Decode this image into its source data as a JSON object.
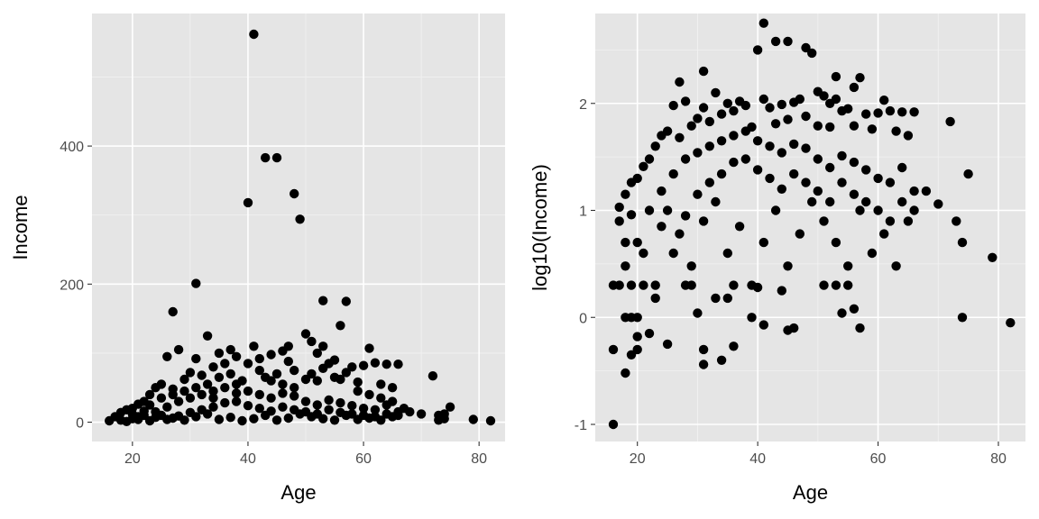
{
  "chart_data": [
    {
      "type": "scatter",
      "xlabel": "Age",
      "ylabel": "Income",
      "xlim": [
        13,
        84.5
      ],
      "ylim": [
        -28,
        592
      ],
      "x_ticks": [
        20,
        40,
        60,
        80
      ],
      "x_tick_labels": [
        "20",
        "40",
        "60",
        "80"
      ],
      "y_ticks": [
        0,
        200,
        400
      ],
      "y_tick_labels": [
        "0",
        "200",
        "400"
      ],
      "grid": true,
      "point_color": "#000000",
      "background_color": "#e5e5e5",
      "points": [
        [
          41,
          562
        ],
        [
          43,
          383
        ],
        [
          45,
          383
        ],
        [
          40,
          318
        ],
        [
          48,
          331
        ],
        [
          49,
          294
        ],
        [
          31,
          201
        ],
        [
          27,
          160
        ],
        [
          53,
          176
        ],
        [
          57,
          175
        ],
        [
          56,
          140
        ],
        [
          50,
          128
        ],
        [
          51,
          117
        ],
        [
          53,
          110
        ],
        [
          41,
          110
        ],
        [
          61,
          107
        ],
        [
          33,
          125
        ],
        [
          28,
          105
        ],
        [
          26,
          95
        ],
        [
          31,
          92
        ],
        [
          35,
          100
        ],
        [
          37,
          105
        ],
        [
          38,
          95
        ],
        [
          42,
          92
        ],
        [
          44,
          98
        ],
        [
          46,
          103
        ],
        [
          47,
          110
        ],
        [
          52,
          100
        ],
        [
          54,
          85
        ],
        [
          55,
          90
        ],
        [
          58,
          80
        ],
        [
          60,
          82
        ],
        [
          62,
          86
        ],
        [
          64,
          84
        ],
        [
          66,
          84
        ],
        [
          72,
          67
        ],
        [
          36,
          85
        ],
        [
          34,
          80
        ],
        [
          30,
          72
        ],
        [
          32,
          68
        ],
        [
          29,
          62
        ],
        [
          25,
          55
        ],
        [
          24,
          50
        ],
        [
          27,
          48
        ],
        [
          23,
          40
        ],
        [
          39,
          60
        ],
        [
          43,
          65
        ],
        [
          45,
          70
        ],
        [
          48,
          75
        ],
        [
          50,
          62
        ],
        [
          52,
          60
        ],
        [
          56,
          62
        ],
        [
          59,
          58
        ],
        [
          63,
          55
        ],
        [
          65,
          50
        ],
        [
          22,
          30
        ],
        [
          21,
          26
        ],
        [
          20,
          20
        ],
        [
          19,
          18
        ],
        [
          18,
          14
        ],
        [
          17,
          8
        ],
        [
          16,
          2
        ],
        [
          20,
          5
        ],
        [
          22,
          10
        ],
        [
          24,
          15
        ],
        [
          26,
          22
        ],
        [
          28,
          30
        ],
        [
          30,
          35
        ],
        [
          32,
          40
        ],
        [
          34,
          45
        ],
        [
          36,
          50
        ],
        [
          38,
          55
        ],
        [
          40,
          45
        ],
        [
          42,
          40
        ],
        [
          44,
          35
        ],
        [
          46,
          42
        ],
        [
          48,
          38
        ],
        [
          50,
          30
        ],
        [
          52,
          25
        ],
        [
          54,
          32
        ],
        [
          56,
          28
        ],
        [
          58,
          24
        ],
        [
          60,
          20
        ],
        [
          62,
          18
        ],
        [
          64,
          25
        ],
        [
          66,
          15
        ],
        [
          68,
          15
        ],
        [
          70,
          12
        ],
        [
          73,
          10
        ],
        [
          74,
          5
        ],
        [
          75,
          22
        ],
        [
          79,
          4
        ],
        [
          82,
          2
        ],
        [
          25,
          10
        ],
        [
          27,
          6
        ],
        [
          29,
          3
        ],
        [
          31,
          8
        ],
        [
          33,
          12
        ],
        [
          35,
          4
        ],
        [
          37,
          7
        ],
        [
          39,
          2
        ],
        [
          41,
          5
        ],
        [
          43,
          10
        ],
        [
          45,
          3
        ],
        [
          47,
          6
        ],
        [
          49,
          12
        ],
        [
          51,
          8
        ],
        [
          53,
          5
        ],
        [
          55,
          3
        ],
        [
          57,
          10
        ],
        [
          59,
          4
        ],
        [
          61,
          6
        ],
        [
          63,
          3
        ],
        [
          65,
          8
        ],
        [
          18,
          3
        ],
        [
          19,
          1
        ],
        [
          21,
          4
        ],
        [
          23,
          2
        ],
        [
          24,
          7
        ],
        [
          26,
          4
        ],
        [
          28,
          9
        ],
        [
          30,
          14
        ],
        [
          32,
          18
        ],
        [
          34,
          22
        ],
        [
          36,
          28
        ],
        [
          38,
          30
        ],
        [
          40,
          24
        ],
        [
          42,
          20
        ],
        [
          44,
          16
        ],
        [
          46,
          22
        ],
        [
          48,
          18
        ],
        [
          50,
          15
        ],
        [
          52,
          12
        ],
        [
          54,
          18
        ],
        [
          56,
          14
        ],
        [
          58,
          12
        ],
        [
          60,
          10
        ],
        [
          62,
          8
        ],
        [
          64,
          12
        ],
        [
          66,
          10
        ],
        [
          40,
          85
        ],
        [
          42,
          75
        ],
        [
          44,
          60
        ],
        [
          46,
          55
        ],
        [
          48,
          50
        ],
        [
          35,
          65
        ],
        [
          37,
          70
        ],
        [
          33,
          55
        ],
        [
          31,
          50
        ],
        [
          29,
          45
        ],
        [
          27,
          40
        ],
        [
          25,
          35
        ],
        [
          23,
          25
        ],
        [
          47,
          88
        ],
        [
          51,
          70
        ],
        [
          53,
          78
        ],
        [
          55,
          65
        ],
        [
          57,
          72
        ],
        [
          59,
          45
        ],
        [
          61,
          40
        ],
        [
          63,
          35
        ],
        [
          65,
          30
        ],
        [
          67,
          20
        ],
        [
          74,
          12
        ],
        [
          73,
          3
        ],
        [
          20,
          12
        ],
        [
          21,
          8
        ],
        [
          22,
          16
        ],
        [
          34,
          35
        ],
        [
          38,
          42
        ]
      ]
    },
    {
      "type": "scatter",
      "xlabel": "Age",
      "ylabel": "log10(Income)",
      "xlim": [
        13,
        84.5
      ],
      "ylim": [
        -1.16,
        2.84
      ],
      "x_ticks": [
        20,
        40,
        60,
        80
      ],
      "x_tick_labels": [
        "20",
        "40",
        "60",
        "80"
      ],
      "y_ticks": [
        -1,
        0,
        1,
        2
      ],
      "y_tick_labels": [
        "-1",
        "0",
        "1",
        "2"
      ],
      "grid": true,
      "point_color": "#000000",
      "background_color": "#e5e5e5",
      "points": [
        [
          41,
          2.75
        ],
        [
          43,
          2.58
        ],
        [
          45,
          2.58
        ],
        [
          40,
          2.5
        ],
        [
          48,
          2.52
        ],
        [
          49,
          2.47
        ],
        [
          31,
          2.3
        ],
        [
          27,
          2.2
        ],
        [
          53,
          2.25
        ],
        [
          57,
          2.24
        ],
        [
          56,
          2.15
        ],
        [
          50,
          2.11
        ],
        [
          51,
          2.07
        ],
        [
          53,
          2.04
        ],
        [
          41,
          2.04
        ],
        [
          61,
          2.03
        ],
        [
          33,
          2.1
        ],
        [
          28,
          2.02
        ],
        [
          26,
          1.98
        ],
        [
          31,
          1.96
        ],
        [
          35,
          2.0
        ],
        [
          37,
          2.02
        ],
        [
          38,
          1.98
        ],
        [
          42,
          1.96
        ],
        [
          44,
          1.99
        ],
        [
          46,
          2.01
        ],
        [
          47,
          2.04
        ],
        [
          52,
          2.0
        ],
        [
          54,
          1.93
        ],
        [
          55,
          1.95
        ],
        [
          58,
          1.9
        ],
        [
          60,
          1.91
        ],
        [
          62,
          1.93
        ],
        [
          64,
          1.92
        ],
        [
          66,
          1.92
        ],
        [
          72,
          1.83
        ],
        [
          36,
          1.93
        ],
        [
          34,
          1.9
        ],
        [
          30,
          1.86
        ],
        [
          32,
          1.83
        ],
        [
          29,
          1.79
        ],
        [
          25,
          1.74
        ],
        [
          24,
          1.7
        ],
        [
          27,
          1.68
        ],
        [
          23,
          1.6
        ],
        [
          39,
          1.78
        ],
        [
          43,
          1.81
        ],
        [
          45,
          1.85
        ],
        [
          48,
          1.88
        ],
        [
          50,
          1.79
        ],
        [
          52,
          1.78
        ],
        [
          56,
          1.79
        ],
        [
          59,
          1.76
        ],
        [
          63,
          1.74
        ],
        [
          65,
          1.7
        ],
        [
          22,
          1.48
        ],
        [
          21,
          1.41
        ],
        [
          20,
          1.3
        ],
        [
          19,
          1.26
        ],
        [
          18,
          1.15
        ],
        [
          17,
          0.9
        ],
        [
          16,
          0.3
        ],
        [
          20,
          0.7
        ],
        [
          22,
          1.0
        ],
        [
          24,
          1.18
        ],
        [
          26,
          1.34
        ],
        [
          28,
          1.48
        ],
        [
          30,
          1.54
        ],
        [
          32,
          1.6
        ],
        [
          34,
          1.65
        ],
        [
          36,
          1.7
        ],
        [
          38,
          1.74
        ],
        [
          40,
          1.65
        ],
        [
          42,
          1.6
        ],
        [
          44,
          1.54
        ],
        [
          46,
          1.62
        ],
        [
          48,
          1.58
        ],
        [
          50,
          1.48
        ],
        [
          52,
          1.4
        ],
        [
          54,
          1.51
        ],
        [
          56,
          1.45
        ],
        [
          58,
          1.38
        ],
        [
          60,
          1.3
        ],
        [
          62,
          1.26
        ],
        [
          64,
          1.4
        ],
        [
          66,
          1.18
        ],
        [
          68,
          1.18
        ],
        [
          70,
          1.06
        ],
        [
          73,
          0.9
        ],
        [
          74,
          0.7
        ],
        [
          75,
          1.34
        ],
        [
          79,
          0.56
        ],
        [
          82,
          -0.05
        ],
        [
          25,
          1.0
        ],
        [
          27,
          0.78
        ],
        [
          29,
          0.48
        ],
        [
          31,
          0.9
        ],
        [
          33,
          1.08
        ],
        [
          35,
          0.6
        ],
        [
          37,
          0.85
        ],
        [
          39,
          0.3
        ],
        [
          41,
          0.7
        ],
        [
          43,
          1.0
        ],
        [
          45,
          0.48
        ],
        [
          47,
          0.78
        ],
        [
          49,
          1.08
        ],
        [
          51,
          0.9
        ],
        [
          53,
          0.7
        ],
        [
          55,
          0.48
        ],
        [
          57,
          1.0
        ],
        [
          59,
          0.6
        ],
        [
          61,
          0.78
        ],
        [
          63,
          0.48
        ],
        [
          65,
          0.9
        ],
        [
          18,
          0.48
        ],
        [
          19,
          0.0
        ],
        [
          21,
          0.6
        ],
        [
          23,
          0.3
        ],
        [
          24,
          0.85
        ],
        [
          26,
          0.6
        ],
        [
          28,
          0.95
        ],
        [
          30,
          1.15
        ],
        [
          32,
          1.26
        ],
        [
          34,
          1.34
        ],
        [
          36,
          1.45
        ],
        [
          38,
          1.48
        ],
        [
          40,
          1.38
        ],
        [
          42,
          1.3
        ],
        [
          44,
          1.2
        ],
        [
          46,
          1.34
        ],
        [
          48,
          1.26
        ],
        [
          50,
          1.18
        ],
        [
          52,
          1.08
        ],
        [
          54,
          1.26
        ],
        [
          56,
          1.15
        ],
        [
          58,
          1.08
        ],
        [
          60,
          1.0
        ],
        [
          62,
          0.9
        ],
        [
          64,
          1.08
        ],
        [
          66,
          1.0
        ],
        [
          16,
          -1.0
        ],
        [
          16,
          -0.3
        ],
        [
          18,
          -0.52
        ],
        [
          18,
          0.0
        ],
        [
          19,
          -0.35
        ],
        [
          20,
          -0.3
        ],
        [
          20,
          -0.18
        ],
        [
          22,
          -0.15
        ],
        [
          25,
          -0.25
        ],
        [
          30,
          0.04
        ],
        [
          31,
          -0.3
        ],
        [
          31,
          -0.44
        ],
        [
          33,
          0.18
        ],
        [
          34,
          -0.4
        ],
        [
          36,
          -0.27
        ],
        [
          36,
          0.3
        ],
        [
          41,
          -0.07
        ],
        [
          45,
          -0.12
        ],
        [
          46,
          -0.1
        ],
        [
          54,
          0.04
        ],
        [
          56,
          0.08
        ],
        [
          57,
          -0.1
        ],
        [
          74,
          0.0
        ],
        [
          21,
          0.3
        ],
        [
          23,
          0.18
        ],
        [
          28,
          0.3
        ],
        [
          29,
          0.3
        ],
        [
          39,
          0.0
        ],
        [
          44,
          0.25
        ],
        [
          51,
          0.3
        ],
        [
          53,
          0.3
        ],
        [
          17,
          0.3
        ],
        [
          19,
          0.3
        ],
        [
          20,
          0.0
        ],
        [
          35,
          0.18
        ],
        [
          55,
          0.3
        ],
        [
          40,
          0.28
        ],
        [
          17,
          1.03
        ],
        [
          18,
          0.7
        ],
        [
          19,
          0.96
        ]
      ]
    }
  ]
}
